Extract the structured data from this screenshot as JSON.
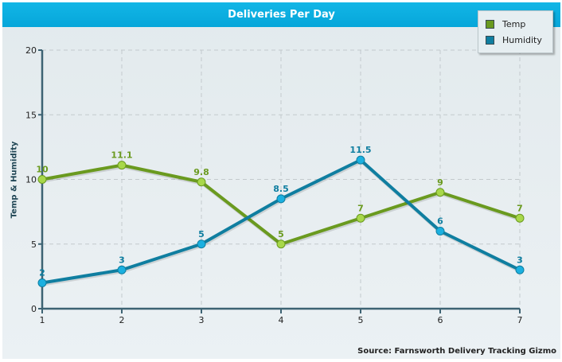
{
  "chart_data": {
    "type": "line",
    "title": "Deliveries Per Day",
    "xlabel": "",
    "ylabel": "Temp & Humidity",
    "x": [
      1,
      2,
      3,
      4,
      5,
      6,
      7
    ],
    "x_tick_labels": [
      "1",
      "2",
      "3",
      "4",
      "5",
      "6",
      "7"
    ],
    "y_tick_labels": [
      "0",
      "5",
      "10",
      "15",
      "20"
    ],
    "y_ticks": [
      0,
      5,
      10,
      15,
      20
    ],
    "xlim": [
      1,
      7
    ],
    "ylim": [
      0,
      20
    ],
    "grid": true,
    "legend_position": "top-right",
    "series": [
      {
        "name": "Temp",
        "color": "#6a9a1f",
        "marker_color": "#a8d84a",
        "values": [
          10,
          11.1,
          9.8,
          5,
          7,
          9,
          7
        ],
        "labels": [
          "10",
          "11.1",
          "9.8",
          "5",
          "7",
          "9",
          "7"
        ]
      },
      {
        "name": "Humidity",
        "color": "#0f7ea0",
        "marker_color": "#1bb0e0",
        "values": [
          2,
          3,
          5,
          8.5,
          11.5,
          6,
          3
        ],
        "labels": [
          "2",
          "3",
          "5",
          "8.5",
          "11.5",
          "6",
          "3"
        ]
      }
    ],
    "source": "Source: Farnsworth Delivery Tracking Gizmo"
  },
  "legend": {
    "items": [
      {
        "label": "Temp",
        "color": "#6a9a1f"
      },
      {
        "label": "Humidity",
        "color": "#0f7ea0"
      }
    ]
  },
  "colors": {
    "title_bar": "#06a6da",
    "axis": "#3d6373",
    "grid": "#c3cacd"
  }
}
